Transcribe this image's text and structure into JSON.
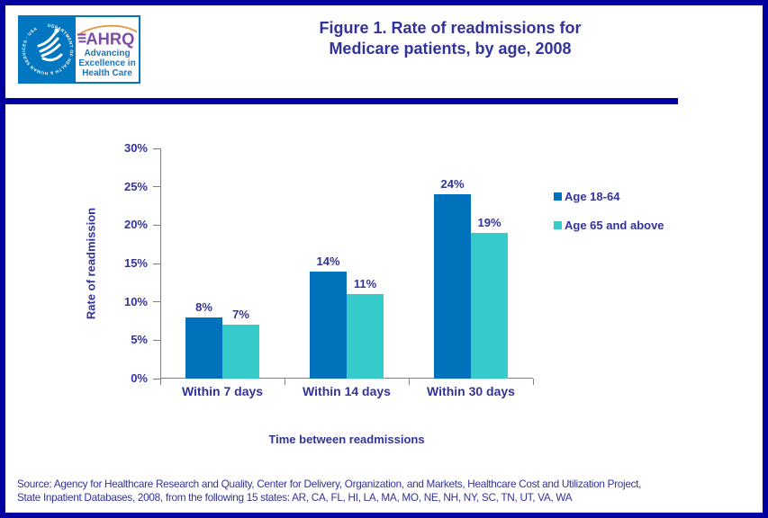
{
  "page": {
    "border_color": "#0000A0",
    "background": "#FFFFFF"
  },
  "header": {
    "title_line1": "Figure 1. Rate of readmissions for",
    "title_line2": "Medicare patients, by age, 2008",
    "title_color": "#333399",
    "logo": {
      "org_abbr": "AHRQ",
      "seal_text": "DEPARTMENT OF HEALTH & HUMAN SERVICES · USA",
      "tagline": [
        "Advancing",
        "Excellence in",
        "Health Care"
      ],
      "colors": {
        "seal_blue": "#0077C0",
        "wordmark_purple": "#7B4EA3",
        "arc_orange": "#E39B4B",
        "tagline_blue": "#1B75BC"
      }
    }
  },
  "chart_data": {
    "type": "bar",
    "title": "",
    "categories": [
      "Within 7 days",
      "Within 14 days",
      "Within 30 days"
    ],
    "series": [
      {
        "name": "Age 18-64",
        "color": "#0072BC",
        "values": [
          8,
          14,
          24
        ]
      },
      {
        "name": "Age 65 and above",
        "color": "#35CBCB",
        "values": [
          7,
          11,
          19
        ]
      }
    ],
    "value_label_suffix": "%",
    "xlabel": "Time between readmissions",
    "ylabel": "Rate of readmission",
    "ylim": [
      0,
      30
    ],
    "ytick_step": 5,
    "ytick_labels": [
      "0%",
      "5%",
      "10%",
      "15%",
      "20%",
      "25%",
      "30%"
    ],
    "legend_position": "right-of-plot",
    "grid": false,
    "axis_color": "#808080",
    "label_color": "#333399"
  },
  "footer": {
    "source_line1": "Source: Agency for Healthcare Research and Quality, Center for Delivery, Organization, and Markets, Healthcare Cost and Utilization Project,",
    "source_line2": "State Inpatient Databases, 2008, from the following 15 states: AR, CA, FL, HI, LA, MA, MO, NE, NH, NY, SC, TN, UT, VA, WA"
  }
}
